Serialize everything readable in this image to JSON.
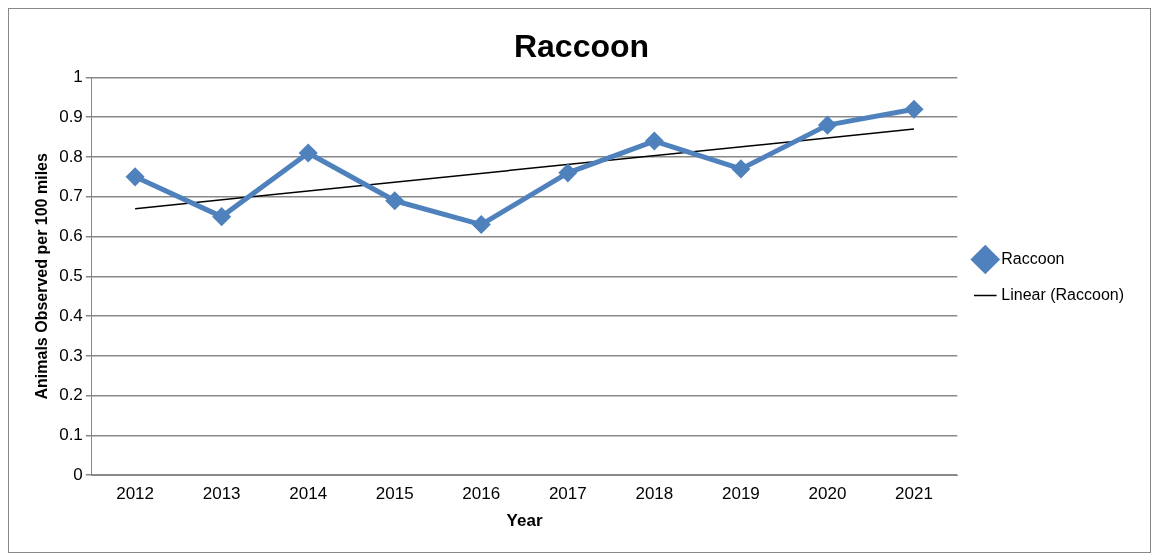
{
  "chart_data": {
    "type": "line",
    "title": "Raccoon",
    "xlabel": "Year",
    "ylabel": "Animals Observed per 100 miles",
    "categories": [
      "2012",
      "2013",
      "2014",
      "2015",
      "2016",
      "2017",
      "2018",
      "2019",
      "2020",
      "2021"
    ],
    "series": [
      {
        "name": "Raccoon",
        "color": "#4f81bd",
        "marker": "diamond",
        "values": [
          0.75,
          0.65,
          0.81,
          0.69,
          0.63,
          0.76,
          0.84,
          0.77,
          0.88,
          0.92
        ]
      },
      {
        "name": "Linear (Raccoon)",
        "color": "#000000",
        "marker": "none",
        "values": [
          0.67,
          null,
          null,
          null,
          null,
          null,
          null,
          null,
          null,
          0.87
        ]
      }
    ],
    "ylim": [
      0,
      1
    ],
    "yticks": [
      0,
      0.1,
      0.2,
      0.3,
      0.4,
      0.5,
      0.6,
      0.7,
      0.8,
      0.9,
      1
    ],
    "grid": "y",
    "legend": "right"
  }
}
